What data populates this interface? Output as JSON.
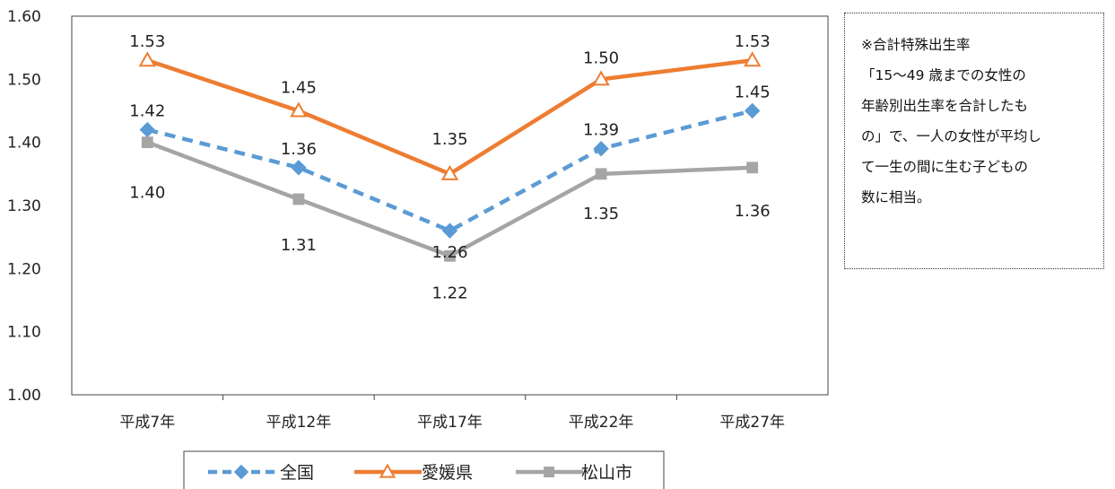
{
  "chart_data": {
    "type": "line",
    "categories": [
      "平成7年",
      "平成12年",
      "平成17年",
      "平成22年",
      "平成27年"
    ],
    "ylim": [
      1.0,
      1.6
    ],
    "yticks": [
      "1.00",
      "1.10",
      "1.20",
      "1.30",
      "1.40",
      "1.50",
      "1.60"
    ],
    "series": [
      {
        "name": "全国",
        "values": [
          1.42,
          1.36,
          1.26,
          1.39,
          1.45
        ],
        "labels": [
          "1.42",
          "1.36",
          "1.26",
          "1.39",
          "1.45"
        ],
        "color": "#5B9BD5",
        "marker": "diamond",
        "dash": true
      },
      {
        "name": "愛媛県",
        "values": [
          1.53,
          1.45,
          1.35,
          1.5,
          1.53
        ],
        "labels": [
          "1.53",
          "1.45",
          "1.35",
          "1.50",
          "1.53"
        ],
        "color": "#ED7D31",
        "marker": "triangle",
        "dash": false
      },
      {
        "name": "松山市",
        "values": [
          1.4,
          1.31,
          1.22,
          1.35,
          1.36
        ],
        "labels": [
          "1.40",
          "1.31",
          "1.22",
          "1.35",
          "1.36"
        ],
        "color": "#A5A5A5",
        "marker": "square",
        "dash": false
      }
    ],
    "legend_position": "bottom"
  },
  "note": {
    "lines": [
      "※合計特殊出生率",
      "「15～49 歳までの女性の",
      "年齢別出生率を合計したも",
      "の」で、一人の女性が平均し",
      "て一生の間に生む子どもの",
      "数に相当。"
    ]
  }
}
